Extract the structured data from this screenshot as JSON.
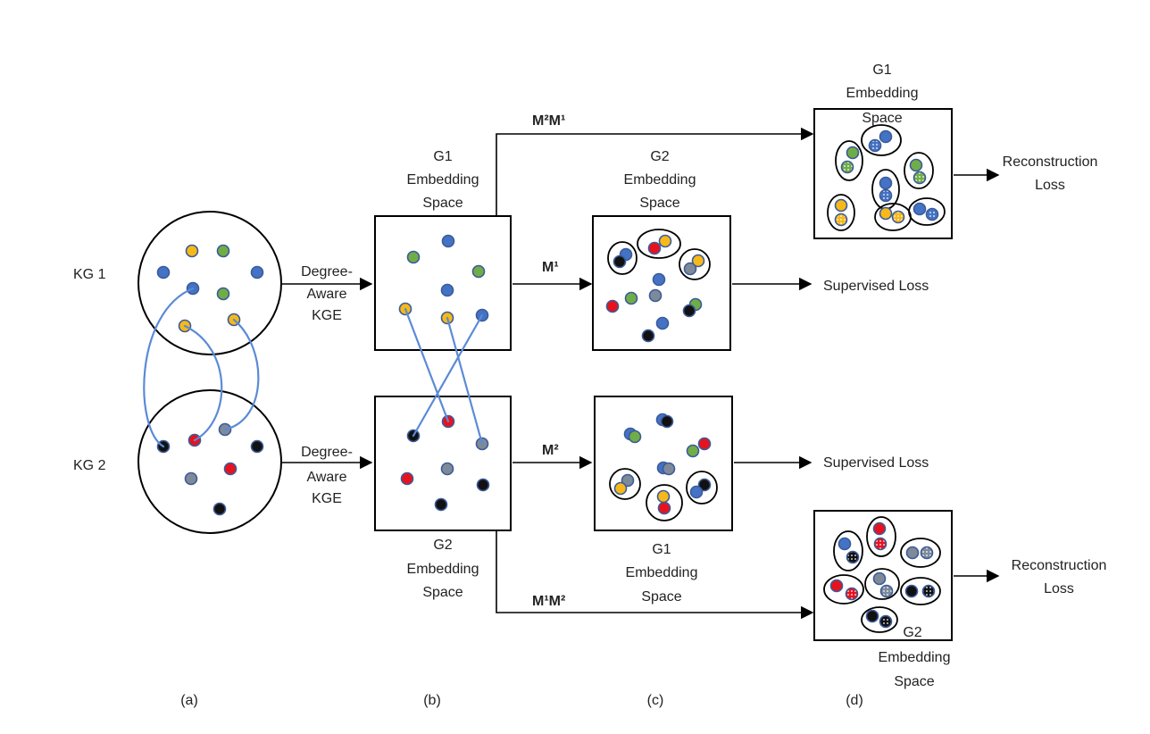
{
  "colors": {
    "blue": "#4472c4",
    "yellow": "#f6b919",
    "green": "#70ad47",
    "red": "#e8121e",
    "gray": "#7f8a99",
    "black": "#111111",
    "node_stroke": "#3b5b99",
    "link": "#5b8bd6",
    "line": "#000000"
  },
  "labels": {
    "kg1": "KG 1",
    "kg2": "KG 2",
    "kge_top_1": "Degree-",
    "kge_top_2": "Aware",
    "kge_top_3": "KGE",
    "kge_bot_1": "Degree-",
    "kge_bot_2": "Aware",
    "kge_bot_3": "KGE",
    "g1_space_b_1": "G1",
    "g1_space_b_2": "Embedding",
    "g1_space_b_3": "Space",
    "g2_space_b_1": "G2",
    "g2_space_b_2": "Embedding",
    "g2_space_b_3": "Space",
    "g2_space_c_1": "G2",
    "g2_space_c_2": "Embedding",
    "g2_space_c_3": "Space",
    "g1_space_c_1": "G1",
    "g1_space_c_2": "Embedding",
    "g1_space_c_3": "Space",
    "g1_space_d_1": "G1",
    "g1_space_d_2": "Embedding",
    "g1_space_d_3": "Space",
    "g2_space_d_1": "G2",
    "g2_space_d_2": "Embedding",
    "g2_space_d_3": "Space",
    "m1": "M¹",
    "m2": "M²",
    "m2m1": "M²M¹",
    "m1m2": "M¹M²",
    "supervised_loss_top": "Supervised Loss",
    "supervised_loss_bottom": "Supervised Loss",
    "recon_top_1": "Reconstruction",
    "recon_top_2": "Loss",
    "recon_bottom_1": "Reconstruction",
    "recon_bottom_2": "Loss",
    "panel_a": "(a)",
    "panel_b": "(b)",
    "panel_c": "(c)",
    "panel_d": "(d)"
  }
}
